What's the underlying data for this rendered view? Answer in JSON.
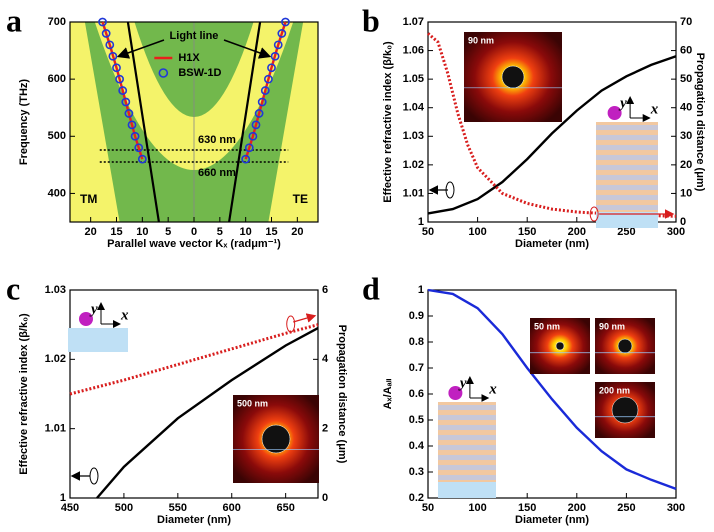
{
  "chart_data": [
    {
      "type": "line",
      "panel_label": "a",
      "xlabel": "Parallel wave vector Kₓ (radμm⁻¹)",
      "ylabel": "Frequency (THz)",
      "xlim": [
        -24,
        24
      ],
      "ylim": [
        350,
        700
      ],
      "xticks": [
        {
          "value": -20,
          "label": "20"
        },
        {
          "value": -15,
          "label": "15"
        },
        {
          "value": -10,
          "label": "10"
        },
        {
          "value": -5,
          "label": "5"
        },
        0,
        5,
        10,
        15,
        20
      ],
      "yticks": [
        400,
        500,
        600,
        700
      ],
      "series": [
        {
          "name": "H1X",
          "color": "#e8201c",
          "marker": "none",
          "x": [
            -10,
            -11.4,
            -12.6,
            -13.8,
            -15.0,
            -16.3,
            -17.7,
            null,
            10,
            11.4,
            12.6,
            13.8,
            15.0,
            16.3,
            17.7
          ],
          "values": [
            460,
            500,
            540,
            580,
            620,
            660,
            700,
            null,
            460,
            500,
            540,
            580,
            620,
            660,
            700
          ]
        },
        {
          "name": "BSW-1D",
          "color": "#2038d8",
          "marker": "circle",
          "x": [
            -10,
            -10.7,
            -11.4,
            -12.0,
            -12.6,
            -13.2,
            -13.8,
            -14.4,
            -15.0,
            -15.7,
            -16.3,
            -17.0,
            -17.7,
            10,
            10.7,
            11.4,
            12.0,
            12.6,
            13.2,
            13.8,
            14.4,
            15.0,
            15.7,
            16.3,
            17.0,
            17.7
          ],
          "values": [
            460,
            480,
            500,
            520,
            540,
            560,
            580,
            600,
            620,
            640,
            660,
            680,
            700,
            460,
            480,
            500,
            520,
            540,
            560,
            580,
            600,
            620,
            640,
            660,
            680,
            700
          ]
        }
      ],
      "light_line": {
        "label": "Light line",
        "color": "#000000",
        "x": [
          -6.8,
          -12.8,
          null,
          6.8,
          12.8
        ],
        "values": [
          350,
          700,
          null,
          350,
          700
        ]
      },
      "hlines": [
        {
          "value": 476,
          "label": "630 nm"
        },
        {
          "value": 455,
          "label": "660 nm"
        }
      ],
      "annotations": [
        "TM",
        "TE"
      ],
      "legend": "upper center"
    },
    {
      "type": "line",
      "panel_label": "b",
      "xlabel": "Diameter (nm)",
      "ylabel": "Effective refractive index (β/k₀)",
      "y2label": "Propagation distance (μm)",
      "xlim": [
        50,
        300
      ],
      "ylim": [
        1,
        1.07
      ],
      "y2lim": [
        0,
        70
      ],
      "xticks": [
        50,
        100,
        150,
        200,
        250,
        300
      ],
      "yticks": [
        1,
        1.01,
        1.02,
        1.03,
        1.04,
        1.05,
        1.06,
        1.07
      ],
      "y2ticks": [
        0,
        10,
        20,
        30,
        40,
        50,
        60,
        70
      ],
      "series": [
        {
          "color": "#000000",
          "dash": "solid",
          "x": [
            50,
            75,
            100,
            125,
            150,
            175,
            200,
            225,
            250,
            275,
            300
          ],
          "values": [
            1.003,
            1.0045,
            1.008,
            1.014,
            1.022,
            1.031,
            1.039,
            1.046,
            1.051,
            1.055,
            1.058
          ]
        },
        {
          "color": "#d81e1e",
          "dash": "dotted",
          "axis": "y2",
          "x": [
            50,
            60,
            70,
            80,
            90,
            100,
            125,
            150,
            175,
            200,
            250,
            300
          ],
          "values": [
            66,
            63,
            52,
            38,
            27,
            19,
            10,
            6.5,
            4.5,
            3.5,
            2.5,
            2
          ]
        }
      ],
      "inset_labels": [
        "90 nm"
      ],
      "schematic_labels": [
        "y",
        "x"
      ]
    },
    {
      "type": "line",
      "panel_label": "c",
      "xlabel": "Diameter (nm)",
      "ylabel": "Effective refractive index (β/k₀)",
      "y2label": "Propagation distance (μm)",
      "xlim": [
        450,
        680
      ],
      "ylim": [
        1,
        1.03
      ],
      "y2lim": [
        0,
        6
      ],
      "xticks": [
        450,
        500,
        550,
        600,
        650
      ],
      "yticks": [
        1,
        1.01,
        1.02,
        1.03
      ],
      "y2ticks": [
        0,
        2,
        4,
        6
      ],
      "series": [
        {
          "color": "#000000",
          "dash": "solid",
          "x": [
            475,
            500,
            550,
            600,
            650,
            680
          ],
          "values": [
            1.0,
            1.0045,
            1.0115,
            1.017,
            1.022,
            1.0245
          ]
        },
        {
          "color": "#d81e1e",
          "dash": "dotted",
          "axis": "y2",
          "x": [
            450,
            500,
            550,
            600,
            650,
            680
          ],
          "values": [
            3.0,
            3.4,
            3.85,
            4.3,
            4.75,
            5.0
          ]
        }
      ],
      "inset_labels": [
        "500 nm"
      ],
      "schematic_labels": [
        "y",
        "x"
      ]
    },
    {
      "type": "line",
      "panel_label": "d",
      "xlabel": "Diameter (nm)",
      "ylabel": "Aₓ/Aₐₗₗ",
      "xlim": [
        50,
        300
      ],
      "ylim": [
        0.2,
        1
      ],
      "xticks": [
        50,
        100,
        150,
        200,
        250,
        300
      ],
      "yticks": [
        0.2,
        0.3,
        0.4,
        0.5,
        0.6,
        0.7,
        0.8,
        0.9,
        1
      ],
      "series": [
        {
          "color": "#1a2ad8",
          "dash": "solid",
          "x": [
            50,
            75,
            100,
            125,
            150,
            175,
            200,
            225,
            250,
            275,
            300
          ],
          "values": [
            1.0,
            0.985,
            0.93,
            0.83,
            0.7,
            0.58,
            0.47,
            0.38,
            0.31,
            0.27,
            0.235
          ]
        }
      ],
      "inset_labels": [
        "50 nm",
        "90 nm",
        "200 nm"
      ],
      "schematic_labels": [
        "y",
        "x"
      ]
    }
  ]
}
